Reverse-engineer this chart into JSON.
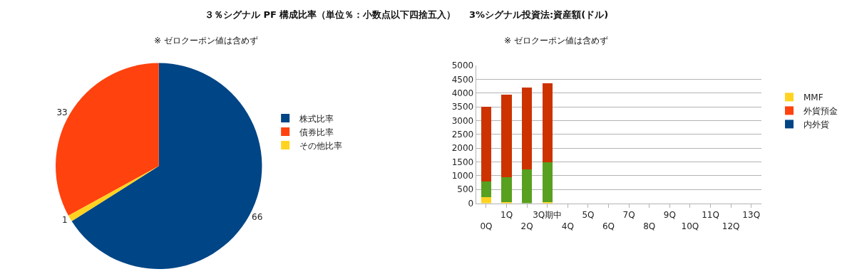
{
  "chart_data": [
    {
      "type": "pie",
      "title": "３％シグナル PF 構成比率（単位％：小数点以下四捨五入）",
      "subtitle": "※ ゼロクーポン値は含めず",
      "categories": [
        "株式比率",
        "債券比率",
        "その他比率"
      ],
      "values": [
        66,
        33,
        1
      ],
      "colors": [
        "#004586",
        "#ff420e",
        "#ffd320"
      ],
      "data_labels": true,
      "legend": "right"
    },
    {
      "type": "bar",
      "title": "3%シグナル投資法:資産額(ドル)",
      "subtitle": "※ ゼロクーポン値は含めず",
      "stacked": true,
      "legend": "right",
      "grid": "y",
      "categories": [
        "0Q",
        "1Q",
        "2Q",
        "3Q期中",
        "4Q",
        "5Q",
        "6Q",
        "7Q",
        "8Q",
        "9Q",
        "10Q",
        "11Q",
        "12Q",
        "13Q"
      ],
      "ylim": [
        0,
        5000
      ],
      "yticks": [
        0,
        500,
        1000,
        1500,
        2000,
        2500,
        3000,
        3500,
        4000,
        4500,
        5000
      ],
      "series": [
        {
          "name": "内外貨",
          "color": "#004586",
          "values": [
            null,
            null,
            null,
            null,
            null,
            null,
            null,
            null,
            null,
            null,
            null,
            null,
            null,
            null
          ]
        },
        {
          "name": "外貨預金",
          "color": "#ff420e",
          "values": [
            null,
            null,
            null,
            null,
            null,
            null,
            null,
            null,
            null,
            null,
            null,
            null,
            null,
            null
          ]
        },
        {
          "name": "MMF",
          "color": "#ffd320",
          "values": [
            230,
            30,
            0,
            50,
            null,
            null,
            null,
            null,
            null,
            null,
            null,
            null,
            null,
            null
          ]
        },
        {
          "color": "#58a01f",
          "values": [
            570,
            920,
            1240,
            1450,
            null,
            null,
            null,
            null,
            null,
            null,
            null,
            null,
            null,
            null
          ]
        },
        {
          "color": "#cc3300",
          "values": [
            2700,
            2990,
            2950,
            2850,
            null,
            null,
            null,
            null,
            null,
            null,
            null,
            null,
            null,
            null
          ]
        }
      ]
    }
  ]
}
